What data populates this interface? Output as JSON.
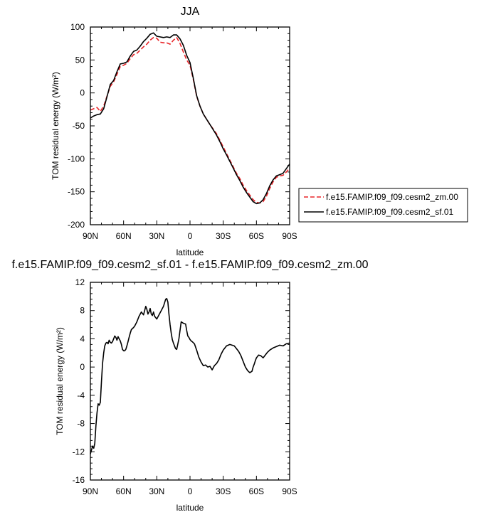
{
  "chart_data": [
    {
      "type": "line",
      "title": "JJA",
      "xlabel": "latitude",
      "ylabel": "TOM residual energy (W/m²)",
      "ylim": [
        -200,
        100
      ],
      "yticks": [
        100,
        50,
        0,
        -50,
        -100,
        -150,
        -200
      ],
      "xlim": [
        90,
        -90
      ],
      "xticks": [
        90,
        60,
        30,
        0,
        -30,
        -60,
        -90
      ],
      "xtick_labels": [
        "90N",
        "60N",
        "30N",
        "0",
        "30S",
        "60S",
        "90S"
      ],
      "legend_position": "right",
      "series": [
        {
          "name": "f.e15.FAMIP.f09_f09.cesm2_zm.00",
          "color": "#e8262a",
          "dash": "dashed",
          "x": [
            90,
            87,
            84,
            81,
            78,
            75,
            72,
            69,
            66,
            63,
            60,
            57,
            54,
            51,
            48,
            45,
            42,
            39,
            36,
            33,
            30,
            27,
            24,
            21,
            18,
            15,
            12,
            9,
            6,
            3,
            0,
            -3,
            -6,
            -9,
            -12,
            -15,
            -18,
            -21,
            -24,
            -27,
            -30,
            -33,
            -36,
            -39,
            -42,
            -45,
            -48,
            -51,
            -54,
            -57,
            -60,
            -63,
            -66,
            -69,
            -72,
            -75,
            -78,
            -81,
            -84,
            -87,
            -90
          ],
          "y": [
            -26,
            -24,
            -22,
            -28,
            -20,
            -5,
            10,
            17,
            28,
            40,
            42,
            45,
            52,
            58,
            60,
            65,
            70,
            74,
            80,
            84,
            83,
            77,
            76,
            76,
            74,
            80,
            84,
            75,
            62,
            50,
            42,
            20,
            -5,
            -20,
            -32,
            -40,
            -48,
            -55,
            -62,
            -72,
            -82,
            -92,
            -102,
            -112,
            -122,
            -130,
            -140,
            -148,
            -155,
            -162,
            -166,
            -167,
            -165,
            -157,
            -145,
            -135,
            -128,
            -126,
            -125,
            -120,
            -114
          ]
        },
        {
          "name": "f.e15.FAMIP.f09_f09.cesm2_sf.01",
          "color": "#000000",
          "dash": "solid",
          "x": [
            90,
            87,
            84,
            81,
            78,
            75,
            72,
            69,
            66,
            63,
            60,
            57,
            54,
            51,
            48,
            45,
            42,
            39,
            36,
            33,
            30,
            27,
            24,
            21,
            18,
            15,
            12,
            9,
            6,
            3,
            0,
            -3,
            -6,
            -9,
            -12,
            -15,
            -18,
            -21,
            -24,
            -27,
            -30,
            -33,
            -36,
            -39,
            -42,
            -45,
            -48,
            -51,
            -54,
            -57,
            -60,
            -63,
            -66,
            -69,
            -72,
            -75,
            -78,
            -81,
            -84,
            -87,
            -90
          ],
          "y": [
            -38,
            -35,
            -33,
            -32,
            -24,
            -6,
            13,
            19,
            32,
            44,
            45,
            47,
            56,
            63,
            65,
            71,
            78,
            83,
            89,
            91,
            86,
            85,
            84,
            85,
            84,
            88,
            88,
            82,
            72,
            57,
            46,
            22,
            -4,
            -20,
            -32,
            -40,
            -48,
            -56,
            -64,
            -74,
            -85,
            -94,
            -104,
            -114,
            -124,
            -133,
            -143,
            -151,
            -158,
            -165,
            -168,
            -167,
            -162,
            -153,
            -141,
            -132,
            -126,
            -124,
            -122,
            -115,
            -108
          ]
        }
      ]
    },
    {
      "type": "line",
      "title": "f.e15.FAMIP.f09_f09.cesm2_sf.01 - f.e15.FAMIP.f09_f09.cesm2_zm.00",
      "xlabel": "latitude",
      "ylabel": "TOM residual energy (W/m²)",
      "ylim": [
        -16,
        12
      ],
      "yticks": [
        12,
        8,
        4,
        0,
        -4,
        -8,
        -12,
        -16
      ],
      "xlim": [
        90,
        -90
      ],
      "xticks": [
        90,
        60,
        30,
        0,
        -30,
        -60,
        -90
      ],
      "xtick_labels": [
        "90N",
        "60N",
        "30N",
        "0",
        "30S",
        "60S",
        "90S"
      ],
      "series": [
        {
          "color": "#000000",
          "dash": "solid",
          "x": [
            90,
            88,
            87,
            86,
            85,
            84,
            83,
            82,
            81,
            80,
            79,
            78,
            77,
            76,
            75,
            74,
            73,
            72,
            71,
            70,
            69,
            68,
            67,
            66,
            65,
            64,
            63,
            62,
            61,
            60,
            59,
            58,
            57,
            56,
            55,
            54,
            53,
            51,
            50,
            48,
            46,
            44,
            42,
            40,
            39,
            38,
            37,
            36,
            35,
            34,
            33,
            32,
            31,
            30,
            28,
            26,
            24,
            22,
            21,
            20,
            19,
            18,
            17,
            16,
            15,
            14,
            13,
            12,
            10,
            8,
            6,
            4,
            3,
            2,
            1,
            0,
            -1,
            -2,
            -4,
            -6,
            -8,
            -10,
            -12,
            -14,
            -16,
            -18,
            -20,
            -22,
            -24,
            -26,
            -28,
            -30,
            -33,
            -36,
            -38,
            -40,
            -42,
            -44,
            -46,
            -48,
            -50,
            -52,
            -54,
            -56,
            -57,
            -58,
            -59,
            -60,
            -62,
            -64,
            -66,
            -68,
            -70,
            -72,
            -75,
            -78,
            -81,
            -84,
            -87,
            -90
          ],
          "y": [
            -12.3,
            -11.2,
            -11.5,
            -10.8,
            -8.3,
            -6.5,
            -5.2,
            -5.4,
            -5.0,
            -2.0,
            0.5,
            2.0,
            3.0,
            3.4,
            3.5,
            3.3,
            3.8,
            3.5,
            3.4,
            3.6,
            4.0,
            4.4,
            4.2,
            3.8,
            4.3,
            4.0,
            3.7,
            3.2,
            2.5,
            2.3,
            2.3,
            2.5,
            3.0,
            3.6,
            4.2,
            4.8,
            5.3,
            5.6,
            5.8,
            6.4,
            7.2,
            7.8,
            7.4,
            8.6,
            8.2,
            7.5,
            7.8,
            8.3,
            7.5,
            7.3,
            7.8,
            7.2,
            7.0,
            6.8,
            7.4,
            8.0,
            8.6,
            9.6,
            9.7,
            9.2,
            7.5,
            6.0,
            4.8,
            3.9,
            3.4,
            3.0,
            2.6,
            2.5,
            4.0,
            6.4,
            6.2,
            6.1,
            5.2,
            4.4,
            4.2,
            3.9,
            3.7,
            3.6,
            3.3,
            2.4,
            1.4,
            0.7,
            0.2,
            0.3,
            0.0,
            0.1,
            -0.4,
            0.2,
            0.5,
            1.0,
            1.8,
            2.4,
            3.0,
            3.2,
            3.1,
            3.0,
            2.6,
            2.2,
            1.6,
            0.8,
            0.0,
            -0.5,
            -0.8,
            -0.6,
            0.0,
            0.4,
            0.9,
            1.3,
            1.7,
            1.6,
            1.3,
            1.7,
            2.1,
            2.4,
            2.7,
            2.9,
            3.1,
            3.0,
            3.3,
            3.4
          ]
        }
      ]
    }
  ]
}
